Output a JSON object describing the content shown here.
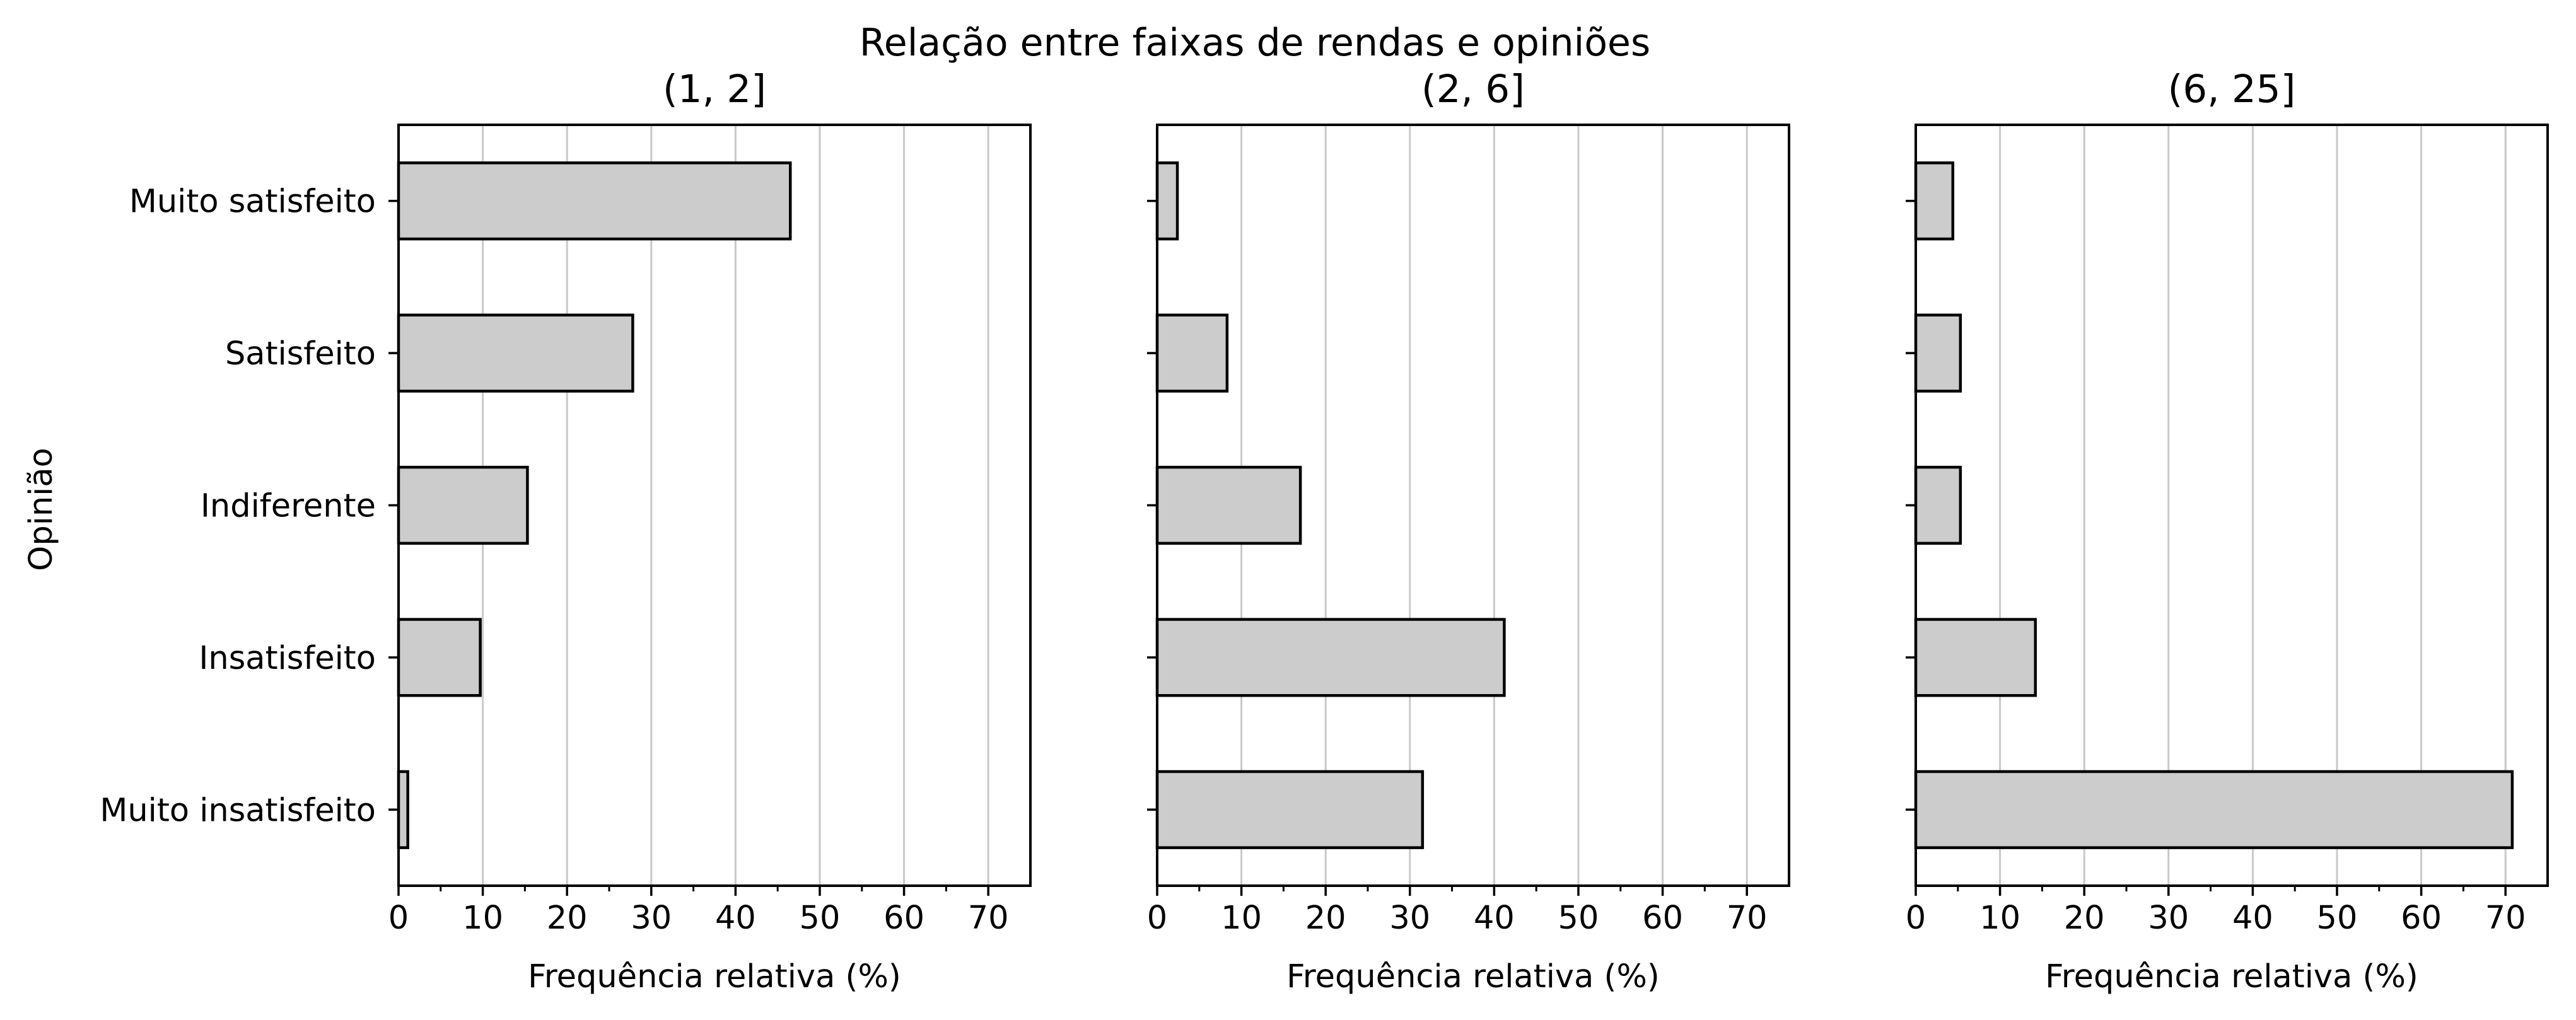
{
  "chart_data": {
    "type": "bar",
    "orientation": "horizontal",
    "title": "Relação entre faixas de rendas e opiniões",
    "ylabel": "Opinião",
    "categories": [
      "Muito satisfeito",
      "Satisfeito",
      "Indiferente",
      "Insatisfeito",
      "Muito insatisfeito"
    ],
    "xlim": [
      0,
      75
    ],
    "xticks": [
      0,
      10,
      20,
      30,
      40,
      50,
      60,
      70
    ],
    "grid": "vertical",
    "colors": {
      "bar_fill": "#cccccc",
      "bar_edge": "#000000",
      "grid": "#c8c8c8"
    },
    "panels": [
      {
        "title": "(1, 2]",
        "xlabel": "Frequência relativa (%)",
        "values": [
          46.5,
          27.8,
          15.3,
          9.7,
          1.1
        ]
      },
      {
        "title": "(2, 6]",
        "xlabel": "Frequência relativa (%)",
        "values": [
          2.4,
          8.3,
          17.0,
          41.2,
          31.5
        ]
      },
      {
        "title": "(6, 25]",
        "xlabel": "Frequência relativa (%)",
        "values": [
          4.4,
          5.3,
          5.3,
          14.2,
          70.8
        ]
      }
    ]
  }
}
